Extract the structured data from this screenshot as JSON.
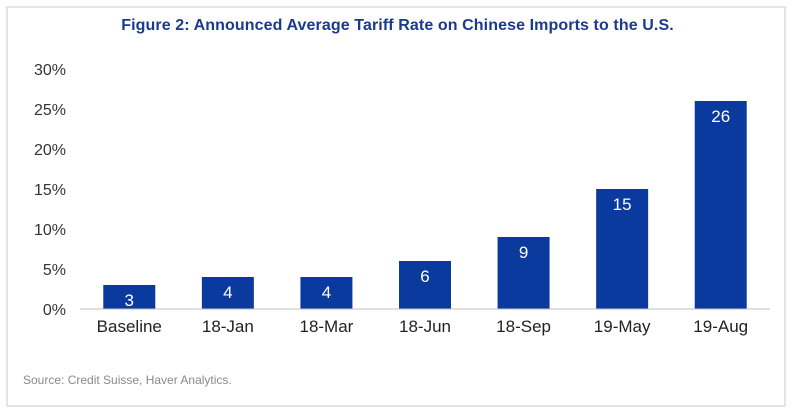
{
  "chart_data": {
    "type": "bar",
    "title": "Figure 2:  Announced Average Tariff Rate on Chinese Imports to the U.S.",
    "categories": [
      "Baseline",
      "18-Jan",
      "18-Mar",
      "18-Jun",
      "18-Sep",
      "19-May",
      "19-Aug"
    ],
    "values": [
      3,
      4,
      4,
      6,
      9,
      15,
      26
    ],
    "data_labels": [
      "3",
      "4",
      "4",
      "6",
      "9",
      "15",
      "26"
    ],
    "ylim": [
      0,
      30
    ],
    "yticks": [
      0,
      5,
      10,
      15,
      20,
      25,
      30
    ],
    "ytick_labels": [
      "0%",
      "5%",
      "10%",
      "15%",
      "20%",
      "25%",
      "30%"
    ],
    "xlabel": "",
    "ylabel": "",
    "grid": false,
    "bar_color": "#0b3a9f",
    "title_color": "#1a3a8c",
    "source": "Source: Credit Suisse, Haver Analytics."
  }
}
